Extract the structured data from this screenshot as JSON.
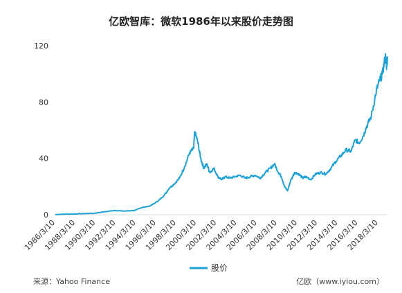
{
  "chart_data": {
    "type": "line",
    "title": "亿欧智库：微软1986年以来股价走势图",
    "xlabel": "",
    "ylabel": "",
    "ylim": [
      0,
      120
    ],
    "y_ticks": [
      0,
      40,
      80,
      120
    ],
    "x_ticks": [
      "1986/3/10",
      "1988/3/10",
      "1990/3/10",
      "1992/3/10",
      "1994/3/10",
      "1996/3/10",
      "1998/3/10",
      "2000/3/10",
      "2002/3/10",
      "2004/3/10",
      "2006/3/10",
      "2008/3/10",
      "2010/3/10",
      "2012/3/10",
      "2014/3/10",
      "2016/3/10",
      "2018/3/10"
    ],
    "grid": false,
    "legend_position": "bottom",
    "series": [
      {
        "name": "股价",
        "color": "#1ea2d6",
        "x": [
          1986.2,
          1987,
          1988,
          1989,
          1990,
          1991,
          1992,
          1993,
          1994,
          1995,
          1995.5,
          1996,
          1996.5,
          1997,
          1997.5,
          1998,
          1998.5,
          1999,
          1999.5,
          1999.9,
          2000.0,
          2000.3,
          2000.6,
          2000.9,
          2001.2,
          2001.5,
          2001.9,
          2002.3,
          2002.7,
          2003,
          2003.5,
          2004,
          2004.5,
          2005,
          2005.5,
          2006,
          2006.5,
          2007,
          2007.5,
          2007.9,
          2008.3,
          2008.6,
          2008.9,
          2009.2,
          2009.5,
          2009.9,
          2010.3,
          2010.7,
          2011,
          2011.5,
          2012,
          2012.5,
          2013,
          2013.5,
          2014,
          2014.5,
          2015,
          2015.5,
          2015.9,
          2016.3,
          2016.7,
          2017,
          2017.5,
          2018,
          2018.3,
          2018.6,
          2018.9,
          2019.0,
          2019.1
        ],
        "values": [
          0.1,
          0.4,
          0.5,
          0.8,
          1.0,
          2.0,
          3.0,
          2.6,
          3.0,
          5.5,
          6.0,
          8.0,
          10.5,
          14.0,
          19.0,
          22.0,
          26.0,
          34.0,
          44.0,
          47.0,
          59.0,
          52.0,
          40.0,
          33.0,
          36.0,
          30.0,
          33.0,
          27.0,
          25.0,
          27.0,
          26.0,
          27.0,
          28.0,
          26.0,
          27.0,
          28.0,
          26.0,
          30.0,
          33.0,
          36.0,
          30.0,
          27.0,
          20.0,
          17.0,
          24.0,
          30.0,
          29.0,
          26.0,
          27.0,
          25.0,
          29.0,
          30.0,
          29.0,
          33.0,
          38.0,
          42.0,
          46.0,
          45.0,
          53.0,
          51.0,
          56.0,
          62.0,
          70.0,
          88.0,
          95.0,
          100.0,
          113.0,
          105.0,
          112.0
        ]
      }
    ]
  },
  "footer": {
    "source": "来源：Yahoo Finance",
    "site": "亿欧（www.iyiou.com）"
  }
}
